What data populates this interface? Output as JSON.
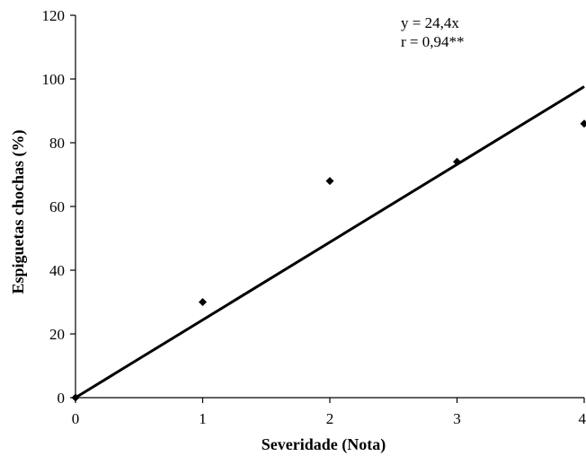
{
  "chart_data": {
    "type": "scatter",
    "title": "",
    "xlabel": "Severidade (Nota)",
    "ylabel": "Espiguetas chochas (%)",
    "xlim": [
      0,
      4
    ],
    "ylim": [
      0,
      120
    ],
    "x_ticks": [
      "0",
      "1",
      "2",
      "3",
      "4"
    ],
    "y_ticks": [
      "0",
      "20",
      "40",
      "60",
      "80",
      "100",
      "120"
    ],
    "grid": false,
    "points": [
      {
        "x": 0,
        "y": 0
      },
      {
        "x": 1,
        "y": 30
      },
      {
        "x": 2,
        "y": 68
      },
      {
        "x": 3,
        "y": 74
      },
      {
        "x": 4,
        "y": 86
      }
    ],
    "trendline": {
      "slope": 24.4,
      "intercept": 0
    },
    "annotations": [
      "y = 24,4x",
      "r = 0,94**"
    ],
    "colors": {
      "axis": "#000000",
      "marker": "#000000",
      "trendline": "#000000"
    }
  }
}
